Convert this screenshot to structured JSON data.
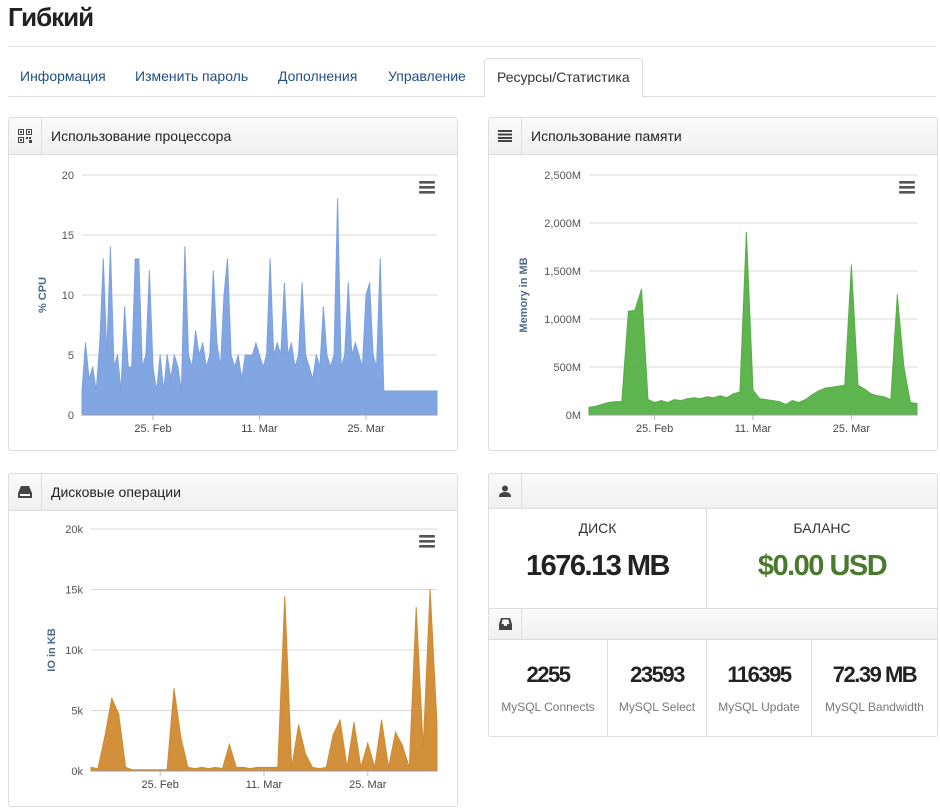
{
  "page": {
    "title": "Гибкий"
  },
  "tabs": [
    {
      "label": "Информация",
      "active": false
    },
    {
      "label": "Изменить пароль",
      "active": false
    },
    {
      "label": "Дополнения",
      "active": false
    },
    {
      "label": "Управление",
      "active": false
    },
    {
      "label": "Ресурсы/Статистика",
      "active": true
    }
  ],
  "panels": {
    "cpu": {
      "title": "Использование процессора",
      "icon": "qrcode-icon"
    },
    "memory": {
      "title": "Использование памяти",
      "icon": "list-icon"
    },
    "disk": {
      "title": "Дисковые операции",
      "icon": "hdd-icon"
    },
    "user_stats": {
      "icon": "user-icon"
    },
    "mysql": {
      "icon": "inbox-icon"
    }
  },
  "stats": {
    "disk_label": "ДИСК",
    "disk_value": "1676.13 MB",
    "balance_label": "БАЛАНС",
    "balance_value": "$0.00 USD",
    "balance_color": "#4a7a2c"
  },
  "mysql": [
    {
      "value": "2255",
      "label": "MySQL Connects"
    },
    {
      "value": "23593",
      "label": "MySQL Select"
    },
    {
      "value": "116395",
      "label": "MySQL Update"
    },
    {
      "value": "72.39 MB",
      "label": "MySQL Bandwidth"
    }
  ],
  "chart_data": [
    {
      "id": "cpu",
      "type": "area",
      "title": "",
      "ylabel": "% CPU",
      "ylim": [
        0,
        20
      ],
      "yticks": [
        0,
        5,
        10,
        15,
        20
      ],
      "ytick_labels": [
        "0",
        "5",
        "10",
        "15",
        "20"
      ],
      "xlim": [
        0,
        50
      ],
      "xticks": [
        {
          "x": 10,
          "label": "25. Feb"
        },
        {
          "x": 25,
          "label": "11. Mar"
        },
        {
          "x": 40,
          "label": "25. Mar"
        }
      ],
      "color": "#7ba1e0",
      "grid": true,
      "x": [
        0,
        0.5,
        1,
        1.5,
        2,
        2.5,
        3,
        3.5,
        4,
        4.5,
        5,
        5.5,
        6,
        6.5,
        7,
        7.5,
        8,
        8.5,
        9,
        9.5,
        10,
        10.5,
        11,
        11.5,
        12,
        12.5,
        13,
        13.5,
        14,
        14.5,
        15,
        15.5,
        16,
        16.5,
        17,
        17.5,
        18,
        18.5,
        19,
        19.5,
        20,
        20.5,
        21,
        21.5,
        22,
        22.5,
        23,
        23.5,
        24,
        24.5,
        25,
        25.5,
        26,
        26.5,
        27,
        27.5,
        28,
        28.5,
        29,
        29.5,
        30,
        30.5,
        31,
        31.5,
        32,
        32.5,
        33,
        33.5,
        34,
        34.5,
        35,
        35.5,
        36,
        36.5,
        37,
        37.5,
        38,
        38.5,
        39,
        39.5,
        40,
        40.5,
        41,
        41.5,
        42,
        42.5,
        43,
        43.5,
        44,
        44.5,
        45,
        45.5,
        46,
        46.5,
        47,
        47.5,
        48,
        48.5,
        49,
        49.5,
        50
      ],
      "values": [
        2,
        6,
        3,
        4,
        2,
        6,
        13,
        5,
        14,
        4,
        5,
        2,
        9,
        4,
        4,
        13,
        13,
        4,
        5,
        12,
        4,
        2,
        5,
        2,
        5,
        3,
        5,
        4,
        2,
        14,
        5,
        4,
        7,
        5,
        6,
        4,
        5,
        12,
        6,
        4,
        10,
        13,
        5,
        4,
        5,
        3,
        5,
        5,
        5,
        6,
        5,
        4,
        5,
        13,
        5,
        6,
        5,
        11,
        5,
        6,
        4,
        5,
        11,
        5,
        4,
        3,
        5,
        4,
        9,
        5,
        4,
        5,
        18,
        4,
        5,
        11,
        5,
        6,
        5,
        4,
        10,
        11,
        5,
        4,
        13,
        2,
        2,
        2,
        2,
        2,
        2,
        2,
        2,
        2,
        2,
        2,
        2,
        2,
        2,
        2,
        2
      ]
    },
    {
      "id": "memory",
      "type": "area",
      "title": "",
      "ylabel": "Memory in MB",
      "ylim": [
        0,
        2500
      ],
      "yticks": [
        0,
        500,
        1000,
        1500,
        2000,
        2500
      ],
      "ytick_labels": [
        "0M",
        "500M",
        "1,000M",
        "1,500M",
        "2,000M",
        "2,500M"
      ],
      "xlim": [
        0,
        50
      ],
      "xticks": [
        {
          "x": 10,
          "label": "25. Feb"
        },
        {
          "x": 25,
          "label": "11. Mar"
        },
        {
          "x": 40,
          "label": "25. Mar"
        }
      ],
      "color": "#55b045",
      "grid": true,
      "x": [
        0,
        1,
        2,
        3,
        4,
        5,
        6,
        7,
        8,
        9,
        10,
        11,
        12,
        13,
        14,
        15,
        16,
        17,
        18,
        19,
        20,
        21,
        22,
        23,
        24,
        25,
        26,
        27,
        28,
        29,
        30,
        31,
        32,
        33,
        34,
        35,
        36,
        37,
        38,
        39,
        40,
        41,
        42,
        43,
        44,
        45,
        46,
        47,
        48,
        49,
        50
      ],
      "values": [
        80,
        90,
        110,
        130,
        140,
        140,
        1080,
        1090,
        1310,
        160,
        130,
        150,
        130,
        160,
        150,
        170,
        180,
        170,
        190,
        180,
        200,
        180,
        220,
        240,
        1900,
        260,
        170,
        160,
        150,
        140,
        110,
        150,
        130,
        160,
        210,
        250,
        280,
        290,
        300,
        310,
        1560,
        310,
        270,
        220,
        200,
        190,
        160,
        1250,
        500,
        130,
        120
      ]
    },
    {
      "id": "disk",
      "type": "area",
      "title": "",
      "ylabel": "IO in KB",
      "ylim": [
        0,
        20000
      ],
      "yticks": [
        0,
        5000,
        10000,
        15000,
        20000
      ],
      "ytick_labels": [
        "0k",
        "5k",
        "10k",
        "15k",
        "20k"
      ],
      "xlim": [
        0,
        50
      ],
      "xticks": [
        {
          "x": 10,
          "label": "25. Feb"
        },
        {
          "x": 25,
          "label": "11. Mar"
        },
        {
          "x": 40,
          "label": "25. Mar"
        }
      ],
      "color": "#d08a30",
      "grid": true,
      "x": [
        0,
        1,
        2,
        3,
        4,
        5,
        6,
        7,
        8,
        9,
        10,
        11,
        12,
        13,
        14,
        15,
        16,
        17,
        18,
        19,
        20,
        21,
        22,
        23,
        24,
        25,
        26,
        27,
        28,
        29,
        30,
        31,
        32,
        33,
        34,
        35,
        36,
        37,
        38,
        39,
        40,
        41,
        42,
        43,
        44,
        45,
        46,
        47,
        48,
        49,
        50
      ],
      "values": [
        300,
        200,
        2800,
        6000,
        4700,
        300,
        100,
        100,
        100,
        100,
        100,
        100,
        6800,
        2700,
        300,
        200,
        300,
        200,
        300,
        200,
        2200,
        300,
        300,
        200,
        300,
        300,
        300,
        300,
        14400,
        300,
        3800,
        1400,
        300,
        200,
        300,
        3000,
        4200,
        300,
        4000,
        300,
        2300,
        300,
        4200,
        300,
        3200,
        2100,
        300,
        13500,
        1900,
        15000,
        3900
      ]
    }
  ]
}
